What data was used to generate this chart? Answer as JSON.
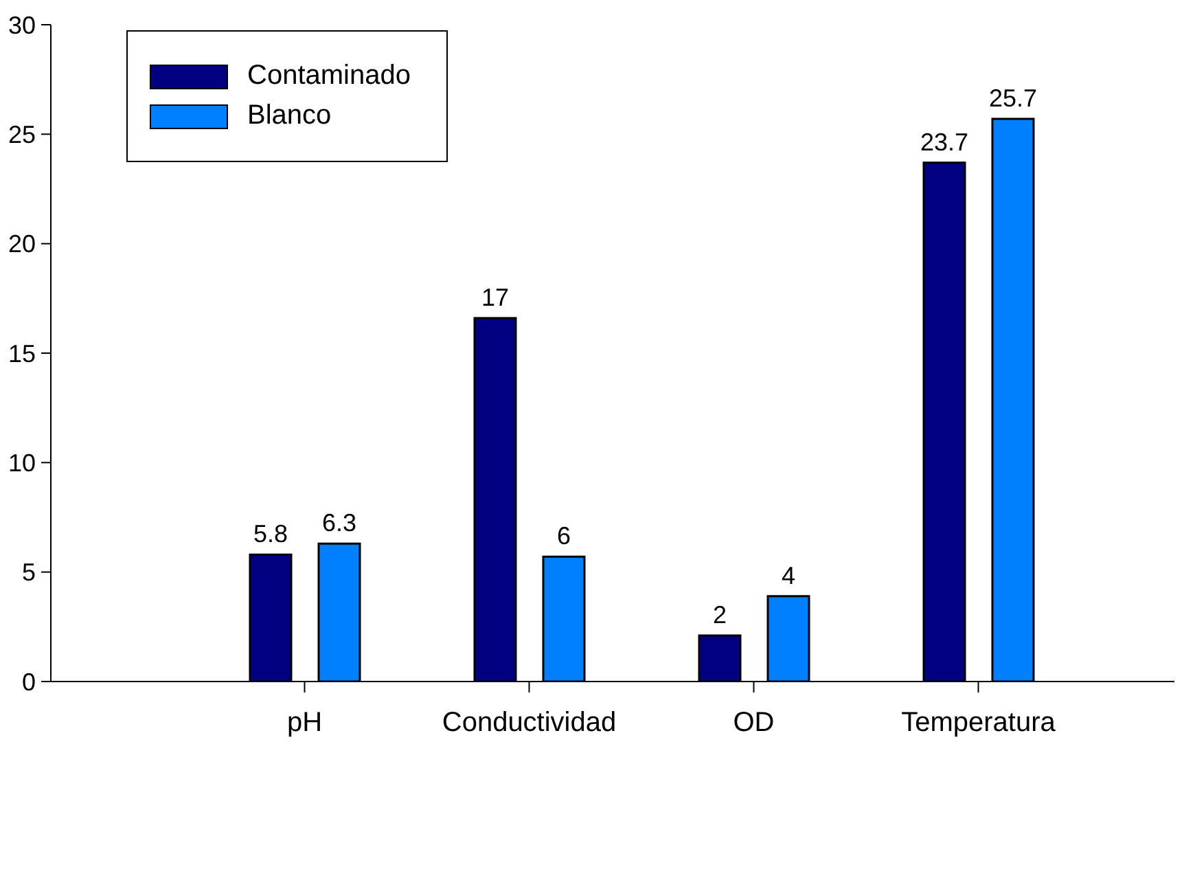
{
  "chart_data": {
    "type": "bar",
    "categories": [
      "pH",
      "Conductividad",
      "OD",
      "Temperatura"
    ],
    "series": [
      {
        "name": "Contaminado",
        "color": "#000080",
        "values": [
          5.8,
          16.6,
          2.1,
          23.7
        ],
        "value_labels": [
          "5.8",
          "17",
          "2",
          "23.7"
        ]
      },
      {
        "name": "Blanco",
        "color": "#0080ff",
        "values": [
          6.3,
          5.7,
          3.9,
          25.7
        ],
        "value_labels": [
          "6.3",
          "6",
          "4",
          "25.7"
        ]
      }
    ],
    "ylim": [
      0,
      30
    ],
    "yticks": [
      0,
      5,
      10,
      15,
      20,
      25,
      30
    ],
    "grid": false,
    "legend": "top left"
  }
}
